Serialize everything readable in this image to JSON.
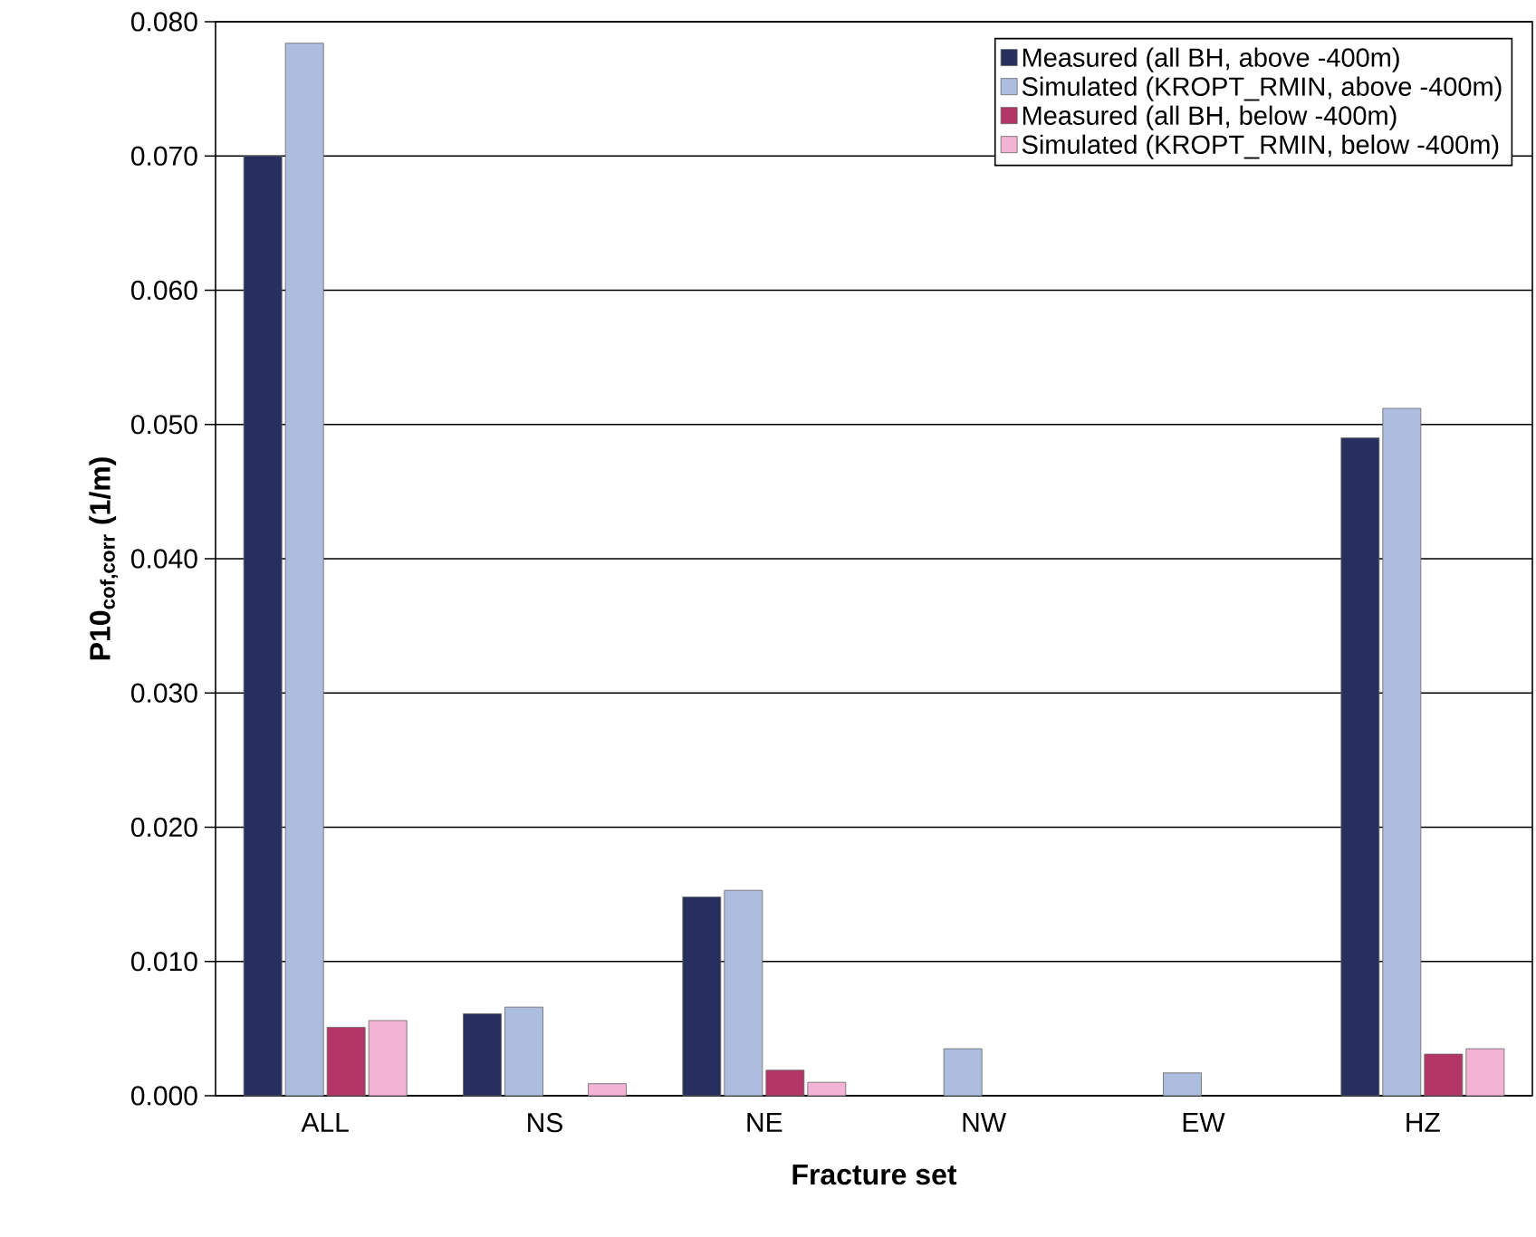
{
  "chart_data": {
    "type": "bar",
    "xlabel": "Fracture set",
    "ylabel": "P10$_{cof,corr}$ (1/m)",
    "categories": [
      "ALL",
      "NS",
      "NE",
      "NW",
      "EW",
      "HZ"
    ],
    "series": [
      {
        "name": "Measured (all BH, above -400m)",
        "color": "#262f5e",
        "values": [
          0.07,
          0.0061,
          0.0148,
          null,
          null,
          0.049
        ]
      },
      {
        "name": "Simulated (KROPT_RMIN, above -400m)",
        "color": "#adbde0",
        "values": [
          0.0784,
          0.0066,
          0.0153,
          0.0035,
          0.0017,
          0.0512
        ]
      },
      {
        "name": "Measured (all BH, below -400m)",
        "color": "#b23565",
        "values": [
          0.0051,
          null,
          0.0019,
          null,
          null,
          0.0031
        ]
      },
      {
        "name": "Simulated (KROPT_RMIN, below -400m)",
        "color": "#f2b3d4",
        "values": [
          0.0056,
          0.0009,
          0.001,
          null,
          null,
          0.0035
        ]
      }
    ],
    "ylim": [
      0,
      0.08
    ],
    "yticks": [
      {
        "value": 0,
        "label": "0.000"
      },
      {
        "value": 0.01,
        "label": "0.010"
      },
      {
        "value": 0.02,
        "label": "0.020"
      },
      {
        "value": 0.03,
        "label": "0.030"
      },
      {
        "value": 0.04,
        "label": "0.040"
      },
      {
        "value": 0.05,
        "label": "0.050"
      },
      {
        "value": 0.06,
        "label": "0.060"
      },
      {
        "value": 0.07,
        "label": "0.070"
      },
      {
        "value": 0.08,
        "label": "0.080"
      }
    ],
    "grid": "y",
    "legend": "top right"
  }
}
